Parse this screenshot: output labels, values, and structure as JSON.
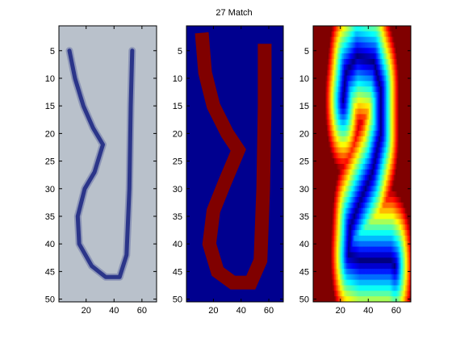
{
  "figure": {
    "title": "27 Match"
  },
  "chart_data": [
    {
      "type": "heatmap",
      "name": "original-handwriting-image",
      "xlim": [
        0.5,
        70.5
      ],
      "ylim": [
        0.5,
        50.5
      ],
      "x_ticks": [
        20,
        40,
        60
      ],
      "y_ticks": [
        5,
        10,
        15,
        20,
        25,
        30,
        35,
        40,
        45,
        50
      ],
      "colormap": "grayscale-photo",
      "colors": {
        "background": "#b9c1cb",
        "stroke": "#2b3589"
      },
      "stroke_path": [
        [
          8,
          5
        ],
        [
          12,
          10
        ],
        [
          18,
          15
        ],
        [
          25,
          19
        ],
        [
          32,
          22
        ],
        [
          26,
          27
        ],
        [
          19,
          30
        ],
        [
          14,
          35
        ],
        [
          15,
          40
        ],
        [
          24,
          44
        ],
        [
          34,
          46
        ],
        [
          44,
          46
        ],
        [
          49,
          42
        ],
        [
          51,
          30
        ],
        [
          52,
          15
        ],
        [
          53,
          5
        ]
      ]
    },
    {
      "type": "heatmap",
      "name": "binary-mask-image",
      "xlim": [
        0.5,
        70.5
      ],
      "ylim": [
        0.5,
        50.5
      ],
      "x_ticks": [
        20,
        40,
        60
      ],
      "y_ticks": [
        5,
        10,
        15,
        20,
        25,
        30,
        35,
        40,
        45,
        50
      ],
      "colormap": "jet-binary",
      "colors": {
        "background": "#00008f",
        "foreground": "#800000"
      },
      "stroke_path": [
        [
          12,
          3
        ],
        [
          14,
          9
        ],
        [
          20,
          15
        ],
        [
          30,
          20
        ],
        [
          38,
          23
        ],
        [
          28,
          29
        ],
        [
          20,
          34
        ],
        [
          17,
          40
        ],
        [
          23,
          45
        ],
        [
          34,
          47
        ],
        [
          47,
          47
        ],
        [
          54,
          43
        ],
        [
          56,
          30
        ],
        [
          57,
          15
        ],
        [
          57,
          5
        ]
      ]
    },
    {
      "type": "heatmap",
      "name": "distance-transform-image",
      "title": "27 Match",
      "xlim": [
        0.5,
        70.5
      ],
      "ylim": [
        0.5,
        50.5
      ],
      "x_ticks": [
        20,
        40,
        60
      ],
      "y_ticks": [
        5,
        10,
        15,
        20,
        25,
        30,
        35,
        40,
        45,
        50
      ],
      "colormap": "jet",
      "stroke_path": [
        [
          22,
          14
        ],
        [
          24,
          9
        ],
        [
          32,
          6
        ],
        [
          44,
          7
        ],
        [
          49,
          12
        ],
        [
          49,
          20
        ],
        [
          43,
          27
        ],
        [
          33,
          33
        ],
        [
          27,
          37
        ],
        [
          26,
          42
        ],
        [
          34,
          43
        ],
        [
          46,
          43
        ],
        [
          56,
          43
        ],
        [
          59,
          44
        ]
      ]
    }
  ]
}
